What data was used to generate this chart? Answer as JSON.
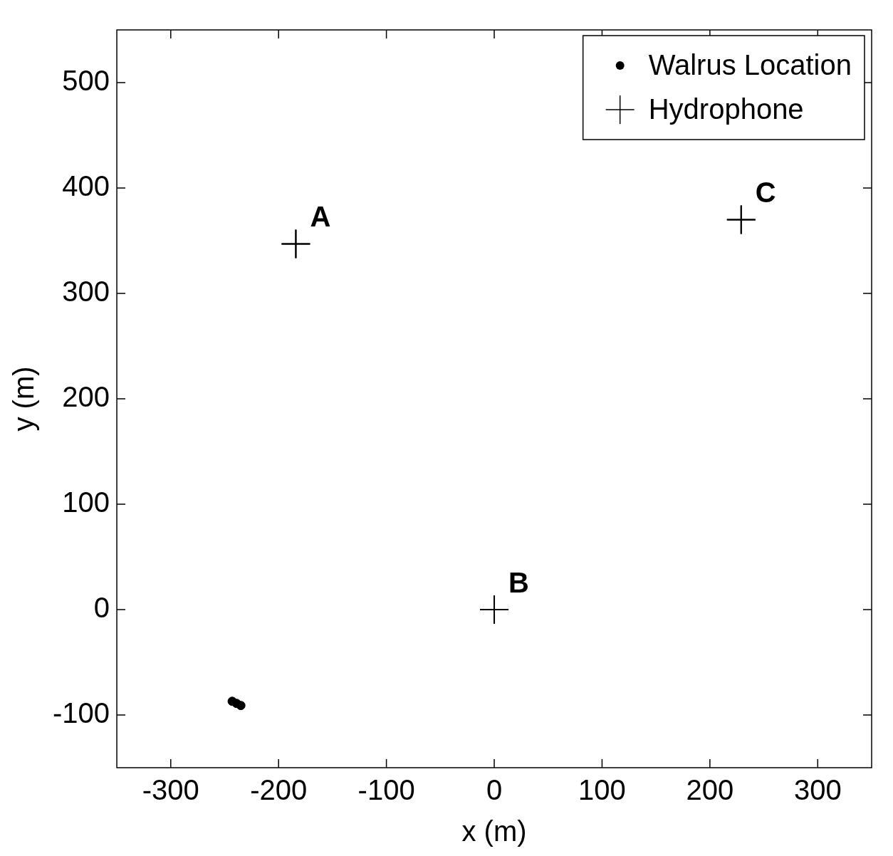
{
  "chart_data": {
    "type": "scatter",
    "xlabel": "x (m)",
    "ylabel": "y (m)",
    "xlim": [
      -350,
      350
    ],
    "xticks": [
      -300,
      -200,
      -100,
      0,
      100,
      200,
      300
    ],
    "ylim": [
      -150,
      550
    ],
    "yticks": [
      -100,
      0,
      100,
      200,
      300,
      400,
      500
    ],
    "grid": false,
    "legend": "top right",
    "series": [
      {
        "name": "Walrus Location",
        "color": "#000000",
        "marker": "circle",
        "x": [
          -243,
          -239,
          -235
        ],
        "values": [
          -87,
          -89,
          -91
        ]
      },
      {
        "name": "Hydrophone",
        "color": "#000000",
        "marker": "cross",
        "x": [
          -184,
          0,
          229
        ],
        "values": [
          347,
          0,
          370
        ]
      }
    ],
    "annotations": [
      {
        "text": "A",
        "x": -184,
        "y": 347
      },
      {
        "text": "B",
        "x": 0,
        "y": 0
      },
      {
        "text": "C",
        "x": 229,
        "y": 370
      }
    ]
  }
}
